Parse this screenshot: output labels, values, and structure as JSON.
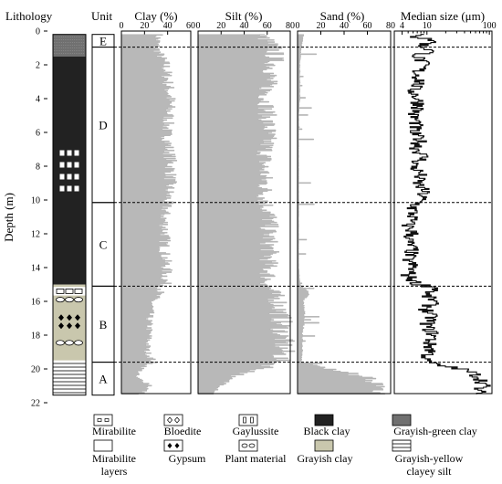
{
  "chart_data": {
    "type": "area",
    "y_axis": {
      "label": "Depth (m)",
      "range": [
        0,
        22
      ],
      "ticks": [
        0,
        2,
        4,
        6,
        8,
        10,
        12,
        14,
        16,
        18,
        20,
        22
      ],
      "inverted": true
    },
    "lithology_title": "Lithology",
    "unit_title": "Unit",
    "units": [
      {
        "label": "E",
        "top": 0.2,
        "bottom": 0.95
      },
      {
        "label": "D",
        "top": 0.95,
        "bottom": 10.15
      },
      {
        "label": "C",
        "top": 10.15,
        "bottom": 15.1
      },
      {
        "label": "B",
        "top": 15.1,
        "bottom": 19.6
      },
      {
        "label": "A",
        "top": 19.6,
        "bottom": 21.55
      }
    ],
    "unit_boundaries": [
      0.95,
      10.15,
      15.1,
      19.6
    ],
    "lithology": [
      {
        "type": "grayish-green-clay",
        "top": 0.2,
        "bottom": 1.5
      },
      {
        "type": "black-clay",
        "top": 1.5,
        "bottom": 15.0
      },
      {
        "type": "grayish-clay",
        "top": 15.0,
        "bottom": 19.5
      },
      {
        "type": "grayish-yellow-clayey-silt",
        "top": 19.5,
        "bottom": 21.55
      }
    ],
    "symbols": [
      {
        "type": "gaylussite",
        "depth_top": 7.0,
        "depth_bottom": 10.0
      },
      {
        "type": "mirabilite",
        "depth_top": 15.2,
        "depth_bottom": 15.6
      },
      {
        "type": "plant-material",
        "depth_top": 15.7,
        "depth_bottom": 16.1
      },
      {
        "type": "gypsum",
        "depth_top": 16.8,
        "depth_bottom": 17.9
      },
      {
        "type": "plant-material",
        "depth_top": 18.3,
        "depth_bottom": 18.6
      }
    ],
    "series": [
      {
        "name": "Clay (%)",
        "range": [
          0,
          60
        ],
        "ticks": [
          0,
          20,
          40,
          60
        ],
        "profile": [
          [
            0.3,
            32
          ],
          [
            1.0,
            30
          ],
          [
            2.0,
            38
          ],
          [
            3.0,
            40
          ],
          [
            4.0,
            42
          ],
          [
            5.0,
            41
          ],
          [
            6.0,
            39
          ],
          [
            7.0,
            41
          ],
          [
            8.0,
            43
          ],
          [
            9.0,
            42
          ],
          [
            10.0,
            40
          ],
          [
            11.0,
            37
          ],
          [
            12.0,
            38
          ],
          [
            13.0,
            37
          ],
          [
            14.0,
            39
          ],
          [
            15.0,
            38
          ],
          [
            15.5,
            33
          ],
          [
            16.0,
            27
          ],
          [
            17.0,
            24
          ],
          [
            18.0,
            24
          ],
          [
            19.0,
            22
          ],
          [
            19.6,
            28
          ],
          [
            20.0,
            18
          ],
          [
            20.5,
            12
          ],
          [
            21.0,
            26
          ],
          [
            21.55,
            16
          ]
        ]
      },
      {
        "name": "Silt (%)",
        "range": [
          0,
          80
        ],
        "ticks": [
          0,
          20,
          40,
          60,
          80
        ],
        "profile": [
          [
            0.3,
            55
          ],
          [
            1.0,
            66
          ],
          [
            2.0,
            66
          ],
          [
            3.0,
            61
          ],
          [
            4.0,
            59
          ],
          [
            5.0,
            60
          ],
          [
            6.0,
            61
          ],
          [
            7.0,
            59
          ],
          [
            8.0,
            57
          ],
          [
            9.0,
            58
          ],
          [
            10.0,
            58
          ],
          [
            11.0,
            62
          ],
          [
            12.0,
            61
          ],
          [
            13.0,
            62
          ],
          [
            14.0,
            61
          ],
          [
            15.0,
            61
          ],
          [
            15.5,
            64
          ],
          [
            16.0,
            70
          ],
          [
            17.0,
            72
          ],
          [
            18.0,
            73
          ],
          [
            19.0,
            74
          ],
          [
            19.6,
            70
          ],
          [
            20.0,
            58
          ],
          [
            20.5,
            28
          ],
          [
            21.0,
            22
          ],
          [
            21.55,
            12
          ]
        ]
      },
      {
        "name": "Sand (%)",
        "range": [
          0,
          80
        ],
        "ticks": [
          0,
          20,
          40,
          60,
          80
        ],
        "profile": [
          [
            0.3,
            5
          ],
          [
            1.0,
            3
          ],
          [
            2.0,
            2
          ],
          [
            3.0,
            2
          ],
          [
            4.0,
            2
          ],
          [
            5.0,
            1
          ],
          [
            6.0,
            1
          ],
          [
            7.0,
            1
          ],
          [
            8.0,
            1
          ],
          [
            9.0,
            1
          ],
          [
            10.0,
            1
          ],
          [
            11.0,
            1
          ],
          [
            12.0,
            1
          ],
          [
            13.0,
            1
          ],
          [
            14.0,
            1
          ],
          [
            15.0,
            2
          ],
          [
            15.5,
            10
          ],
          [
            16.0,
            5
          ],
          [
            17.0,
            6
          ],
          [
            18.0,
            4
          ],
          [
            19.0,
            4
          ],
          [
            19.6,
            3
          ],
          [
            20.0,
            25
          ],
          [
            20.5,
            60
          ],
          [
            21.0,
            72
          ],
          [
            21.55,
            70
          ]
        ]
      },
      {
        "name": "Median size (μm)",
        "scale": "log",
        "range": [
          3,
          110
        ],
        "ticks": [
          4,
          10,
          100
        ],
        "profile": [
          [
            0.2,
            11
          ],
          [
            0.4,
            6
          ],
          [
            0.6,
            14
          ],
          [
            0.9,
            8
          ],
          [
            1.2,
            12
          ],
          [
            1.5,
            7
          ],
          [
            2.0,
            9
          ],
          [
            2.5,
            7
          ],
          [
            3.0,
            8
          ],
          [
            3.5,
            6
          ],
          [
            4.0,
            7
          ],
          [
            4.5,
            8
          ],
          [
            5.0,
            6
          ],
          [
            5.5,
            7
          ],
          [
            6.0,
            6
          ],
          [
            6.5,
            8
          ],
          [
            7.0,
            7
          ],
          [
            7.5,
            9
          ],
          [
            8.0,
            6
          ],
          [
            8.5,
            8
          ],
          [
            9.0,
            7
          ],
          [
            9.5,
            9
          ],
          [
            10.0,
            8
          ],
          [
            10.5,
            6
          ],
          [
            11.0,
            6
          ],
          [
            11.5,
            5
          ],
          [
            12.0,
            6
          ],
          [
            12.5,
            5
          ],
          [
            13.0,
            6
          ],
          [
            13.5,
            5
          ],
          [
            14.0,
            6
          ],
          [
            14.5,
            5
          ],
          [
            15.0,
            7
          ],
          [
            15.3,
            16
          ],
          [
            15.6,
            9
          ],
          [
            16.0,
            13
          ],
          [
            16.5,
            10
          ],
          [
            17.0,
            12
          ],
          [
            17.5,
            10
          ],
          [
            18.0,
            13
          ],
          [
            18.5,
            11
          ],
          [
            19.0,
            12
          ],
          [
            19.5,
            9
          ],
          [
            19.8,
            14
          ],
          [
            20.2,
            50
          ],
          [
            20.6,
            75
          ],
          [
            21.0,
            85
          ],
          [
            21.3,
            60
          ],
          [
            21.55,
            90
          ]
        ]
      }
    ],
    "legend": [
      {
        "key": "mirabilite",
        "label": "Mirabilite"
      },
      {
        "key": "bloedite",
        "label": "Bloedite"
      },
      {
        "key": "gaylussite",
        "label": "Gaylussite"
      },
      {
        "key": "black-clay",
        "label": "Black clay"
      },
      {
        "key": "grayish-green-clay",
        "label": "Grayish-green  clay"
      },
      {
        "key": "mirabilite-layers",
        "label": "Mirabilite layers"
      },
      {
        "key": "gypsum",
        "label": "Gypsum"
      },
      {
        "key": "plant-material",
        "label": "Plant  material"
      },
      {
        "key": "grayish-clay",
        "label": "Grayish clay"
      },
      {
        "key": "grayish-yellow-clayey-silt",
        "label": "Grayish-yellow clayey silt"
      }
    ],
    "colors": {
      "black-clay": "#222222",
      "grayish-green-clay": "#707070",
      "grayish-clay": "#c9c7ad",
      "profile-fill": "#b8b8b8",
      "median-line": "#111111"
    }
  }
}
